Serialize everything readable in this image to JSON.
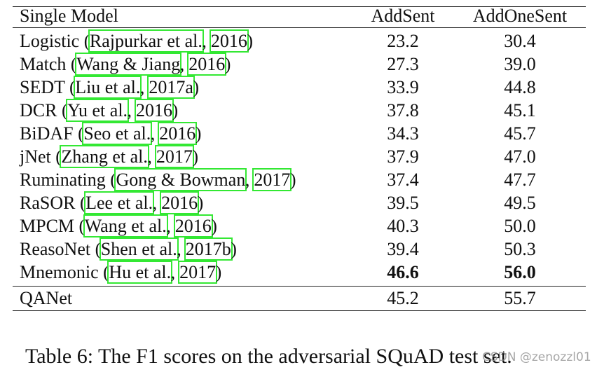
{
  "table": {
    "header": [
      "Single Model",
      "AddSent",
      "AddOneSent"
    ],
    "rows": [
      {
        "model": [
          "Logistic (",
          "Rajpurkar et al.",
          ", ",
          "2016",
          ")"
        ],
        "values": [
          "23.2",
          "30.4"
        ]
      },
      {
        "model": [
          "Match (",
          "Wang & Jiang",
          ", ",
          "2016",
          ")"
        ],
        "values": [
          "27.3",
          "39.0"
        ]
      },
      {
        "model": [
          "SEDT (",
          "Liu et al.",
          ", ",
          "2017a",
          ")"
        ],
        "values": [
          "33.9",
          "44.8"
        ]
      },
      {
        "model": [
          "DCR (",
          "Yu et al.",
          ", ",
          "2016",
          ")"
        ],
        "values": [
          "37.8",
          "45.1"
        ]
      },
      {
        "model": [
          "BiDAF (",
          "Seo et al.",
          ", ",
          "2016",
          ")"
        ],
        "values": [
          "34.3",
          "45.7"
        ]
      },
      {
        "model": [
          "jNet (",
          "Zhang et al.",
          ", ",
          "2017",
          ")"
        ],
        "values": [
          "37.9",
          "47.0"
        ]
      },
      {
        "model": [
          "Ruminating (",
          "Gong & Bowman",
          ", ",
          "2017",
          ")"
        ],
        "values": [
          "37.4",
          "47.7"
        ]
      },
      {
        "model": [
          "RaSOR (",
          "Lee et al.",
          ", ",
          "2016",
          ")"
        ],
        "values": [
          "39.5",
          "49.5"
        ]
      },
      {
        "model": [
          "MPCM (",
          "Wang et al.",
          ", ",
          "2016",
          ")"
        ],
        "values": [
          "40.3",
          "50.0"
        ]
      },
      {
        "model": [
          "ReasoNet (",
          "Shen et al.",
          ", ",
          "2017b",
          ")"
        ],
        "values": [
          "39.4",
          "50.3"
        ]
      },
      {
        "model": [
          "Mnemonic (",
          "Hu et al.",
          ", ",
          "2017",
          ")"
        ],
        "values": [
          "46.6",
          "56.0"
        ],
        "bold": true
      },
      {
        "model": [
          "QANet"
        ],
        "values": [
          "45.2",
          "55.7"
        ],
        "separated": true
      }
    ]
  },
  "caption": "Table 6: The F1 scores on the adversarial SQuAD test set.",
  "watermark": "CSDN @zenozzl01"
}
